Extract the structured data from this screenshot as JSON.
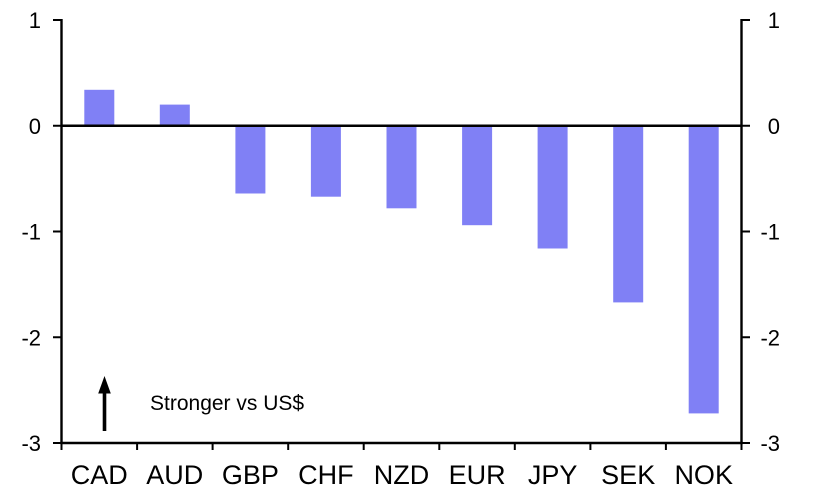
{
  "chart_data": {
    "type": "bar",
    "title": "",
    "xlabel": "",
    "ylabel": "",
    "categories": [
      "CAD",
      "AUD",
      "GBP",
      "CHF",
      "NZD",
      "EUR",
      "JPY",
      "SEK",
      "NOK"
    ],
    "values": [
      0.34,
      0.2,
      -0.64,
      -0.67,
      -0.78,
      -0.94,
      -1.16,
      -1.67,
      -2.72
    ],
    "ylim": [
      -3,
      1
    ],
    "yticks": [
      1,
      0,
      -1,
      -2,
      -3
    ],
    "ytick_labels": [
      "1",
      "0",
      "-1",
      "-2",
      "-3"
    ],
    "dual_y_axis": true,
    "grid": false,
    "legend_position": "none",
    "annotation": {
      "text": "Stronger vs US$",
      "arrow_direction": "up"
    },
    "bar_color": "#8080f5",
    "axis_color": "#000000",
    "background_color": "#ffffff"
  }
}
